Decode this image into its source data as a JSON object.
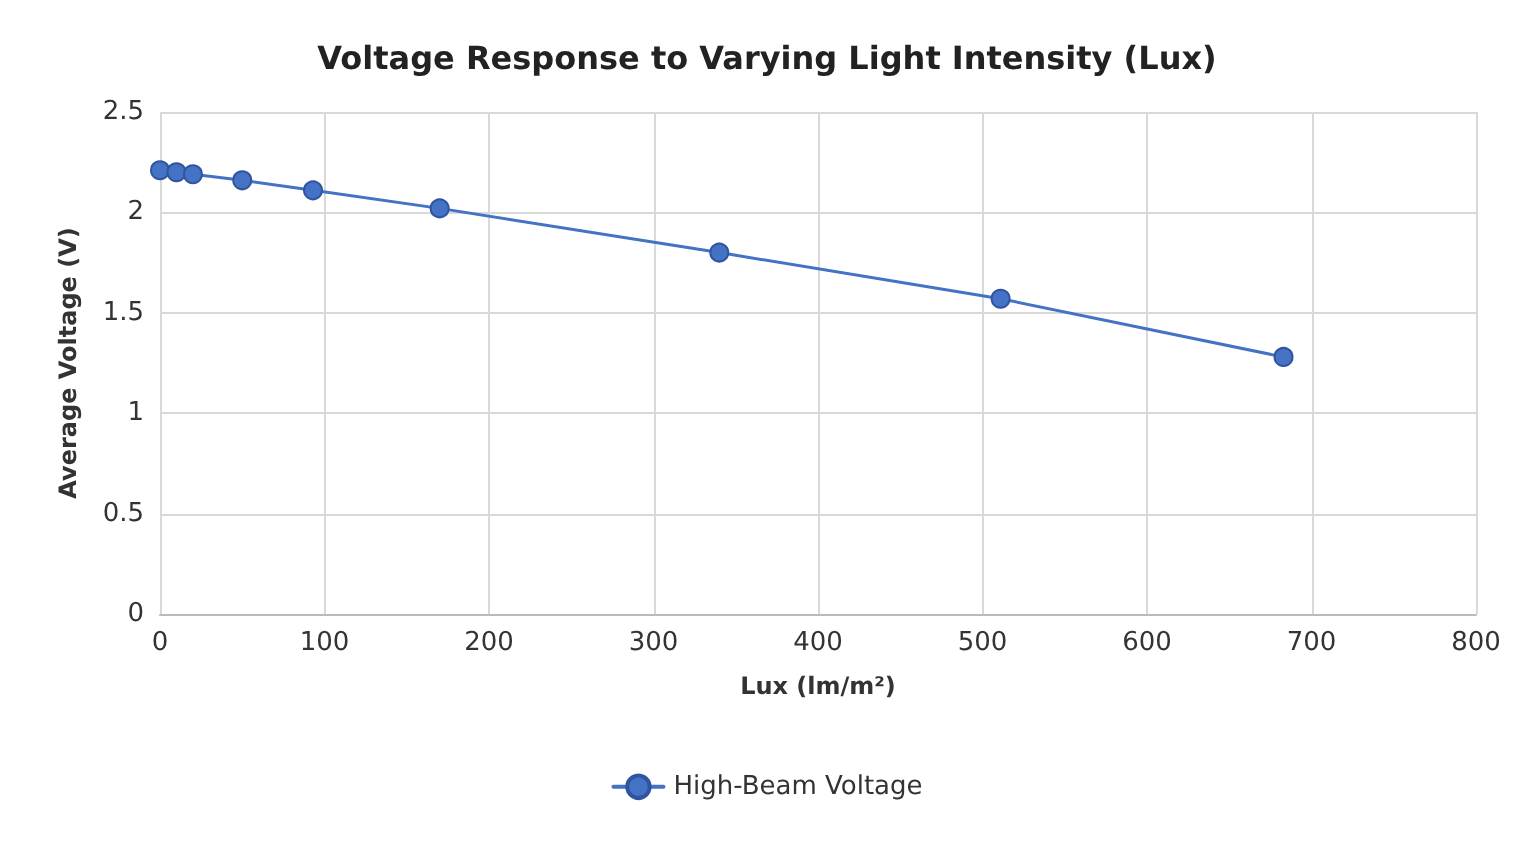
{
  "chart_data": {
    "type": "line",
    "title": "Voltage Response to Varying Light Intensity (Lux)",
    "xlabel": "Lux (lm/m²)",
    "ylabel": "Average Voltage (V)",
    "x": [
      0,
      10,
      20,
      50,
      93,
      170,
      340,
      511,
      683
    ],
    "series": [
      {
        "name": "High-Beam Voltage",
        "color": "#4472c4",
        "values": [
          2.21,
          2.2,
          2.19,
          2.16,
          2.11,
          2.02,
          1.8,
          1.57,
          1.28
        ]
      }
    ],
    "xlim": [
      0,
      800
    ],
    "xticks": [
      0,
      100,
      200,
      300,
      400,
      500,
      600,
      700,
      800
    ],
    "ylim": [
      0,
      2.5
    ],
    "yticks": [
      0,
      0.5,
      1,
      1.5,
      2,
      2.5
    ],
    "grid": true,
    "legend": "bottom",
    "marker": "circle",
    "line_style": "solid"
  }
}
